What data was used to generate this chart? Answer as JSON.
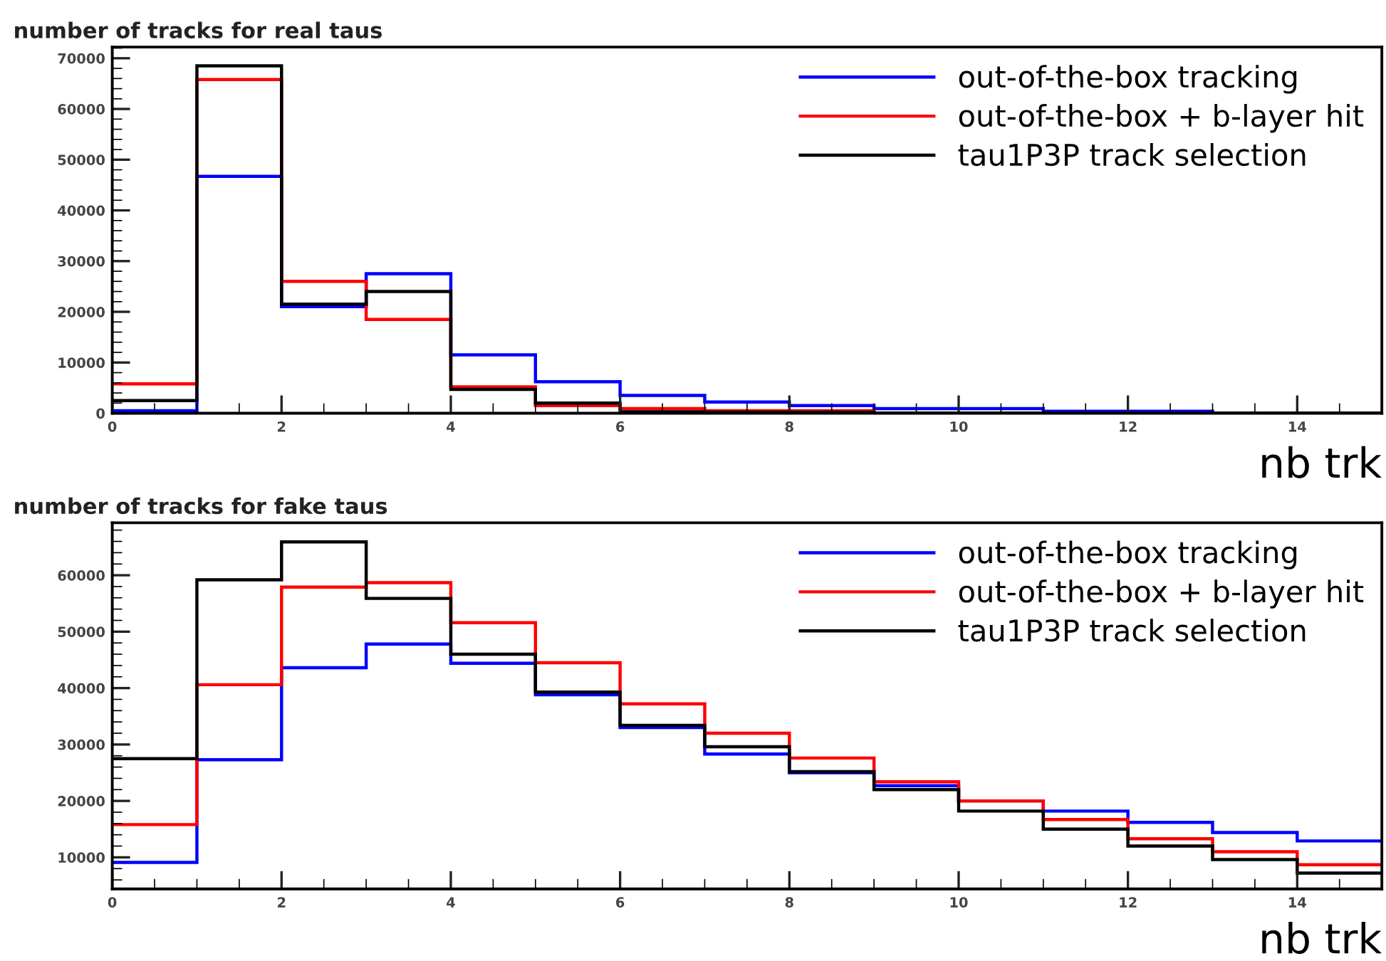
{
  "chart_data": [
    {
      "type": "histogram",
      "title": "number of tracks for real taus",
      "xlabel": "nb trk",
      "bins": [
        0,
        1,
        2,
        3,
        4,
        5,
        6,
        7,
        8,
        9,
        10,
        11,
        12,
        13,
        14,
        15
      ],
      "series": [
        {
          "name": "out-of-the-box tracking",
          "color": "#0000ff",
          "values": [
            500,
            46700,
            21000,
            27500,
            11500,
            6200,
            3500,
            2200,
            1500,
            900,
            900,
            400,
            400,
            0,
            0
          ]
        },
        {
          "name": "out-of-the-box + b-layer hit",
          "color": "#ff0000",
          "values": [
            5800,
            65800,
            26000,
            18500,
            5200,
            1500,
            900,
            500,
            500,
            0,
            0,
            0,
            0,
            0,
            0
          ]
        },
        {
          "name": "tau1P3P track selection",
          "color": "#000000",
          "values": [
            2500,
            68500,
            21500,
            24000,
            4700,
            2000,
            300,
            200,
            200,
            0,
            0,
            0,
            0,
            0,
            0
          ]
        }
      ],
      "xlim": [
        0,
        15
      ],
      "ylim": [
        0,
        72200
      ],
      "xticks": [
        0,
        2,
        4,
        6,
        8,
        10,
        12,
        14
      ],
      "yticks": [
        0,
        10000,
        20000,
        30000,
        40000,
        50000,
        60000,
        70000
      ],
      "grid": false,
      "legend": "top right"
    },
    {
      "type": "histogram",
      "title": "number of tracks for fake taus",
      "xlabel": "nb trk",
      "bins": [
        0,
        1,
        2,
        3,
        4,
        5,
        6,
        7,
        8,
        9,
        10,
        11,
        12,
        13,
        14,
        15
      ],
      "series": [
        {
          "name": "out-of-the-box tracking",
          "color": "#0000ff",
          "values": [
            9100,
            27300,
            43600,
            47800,
            44400,
            38800,
            33000,
            28300,
            25000,
            22700,
            20000,
            18200,
            16200,
            14400,
            12900
          ]
        },
        {
          "name": "out-of-the-box + b-layer hit",
          "color": "#ff0000",
          "values": [
            15800,
            40600,
            57900,
            58700,
            51600,
            44500,
            37200,
            32000,
            27600,
            23400,
            20000,
            16700,
            13300,
            11000,
            8700
          ]
        },
        {
          "name": "tau1P3P track selection",
          "color": "#000000",
          "values": [
            27500,
            59200,
            65900,
            55900,
            46000,
            39300,
            33400,
            29600,
            25200,
            22000,
            18200,
            15000,
            12000,
            9600,
            7200
          ]
        }
      ],
      "xlim": [
        0,
        15
      ],
      "ylim": [
        4400,
        69300
      ],
      "xticks": [
        0,
        2,
        4,
        6,
        8,
        10,
        12,
        14
      ],
      "yticks": [
        10000,
        20000,
        30000,
        40000,
        50000,
        60000
      ],
      "grid": false,
      "legend": "top right"
    }
  ]
}
